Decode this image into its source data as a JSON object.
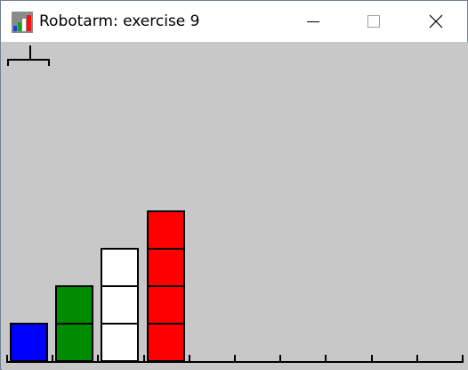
{
  "window": {
    "title": "Robotarm: exercise 9",
    "controls": [
      "minimize",
      "maximize",
      "close"
    ]
  },
  "scene": {
    "background": "#c8c8c8",
    "slot_count": 10,
    "arm": {
      "slot": 0,
      "holding": null
    },
    "stacks": [
      {
        "slot": 0,
        "blocks": [
          "blue"
        ]
      },
      {
        "slot": 1,
        "blocks": [
          "green",
          "green"
        ]
      },
      {
        "slot": 2,
        "blocks": [
          "white",
          "white",
          "white"
        ]
      },
      {
        "slot": 3,
        "blocks": [
          "red",
          "red",
          "red",
          "red"
        ]
      },
      {
        "slot": 4,
        "blocks": []
      },
      {
        "slot": 5,
        "blocks": []
      },
      {
        "slot": 6,
        "blocks": []
      },
      {
        "slot": 7,
        "blocks": []
      },
      {
        "slot": 8,
        "blocks": []
      },
      {
        "slot": 9,
        "blocks": []
      }
    ],
    "colors": {
      "blue": "#0000ff",
      "green": "#008c00",
      "white": "#ffffff",
      "red": "#ff0000"
    }
  }
}
